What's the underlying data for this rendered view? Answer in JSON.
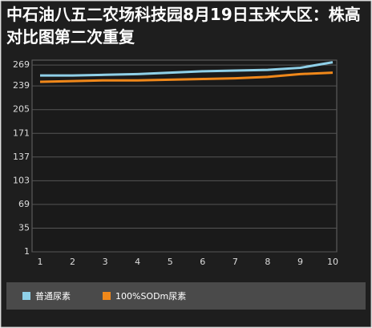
{
  "chart_data": {
    "type": "line",
    "title": "中石油八五二农场科技园8月19日玉米大区：株高对比图第二次重复",
    "x": [
      1,
      2,
      3,
      4,
      5,
      6,
      7,
      8,
      9,
      10
    ],
    "xlim": [
      1,
      10
    ],
    "xticks": [
      1,
      2,
      3,
      4,
      5,
      6,
      7,
      8,
      9,
      10
    ],
    "ylim": [
      1,
      276
    ],
    "yticks": [
      1,
      35,
      69,
      103,
      137,
      171,
      205,
      239,
      269
    ],
    "grid": true,
    "legend": "bottom",
    "series": [
      {
        "name": "普通尿素",
        "color": "#8fd0e8",
        "values": [
          254,
          254,
          255,
          256,
          258,
          260,
          261,
          262,
          265,
          273
        ]
      },
      {
        "name": "100%SODm尿素",
        "color": "#f0881a",
        "values": [
          245,
          246,
          247,
          247,
          248,
          249,
          250,
          252,
          256,
          258
        ]
      }
    ]
  }
}
